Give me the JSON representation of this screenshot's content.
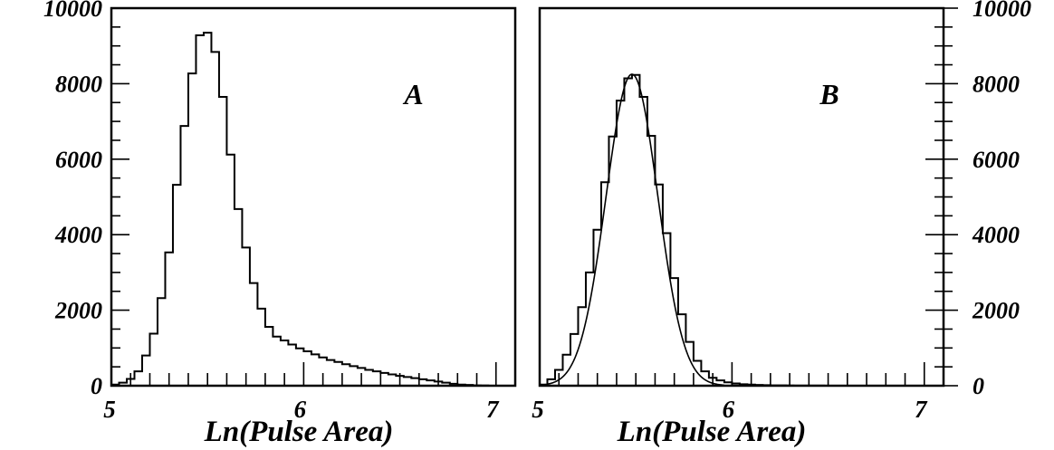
{
  "chart_data": [
    {
      "type": "step histogram",
      "panel_label": "A",
      "xlabel": "Ln(Pulse Area)",
      "ylabel": "",
      "xlim": [
        5.0,
        7.1
      ],
      "ylim": [
        0,
        10000
      ],
      "x_ticks": [
        "5",
        "6",
        "7"
      ],
      "y_ticks": [
        "0",
        "2000",
        "4000",
        "6000",
        "8000",
        "10000"
      ],
      "y_axis_side": "left",
      "bin_width": 0.04,
      "bin_start": 5.0,
      "values": [
        30,
        80,
        180,
        380,
        800,
        1380,
        2320,
        3530,
        5320,
        6880,
        8270,
        9280,
        9350,
        8840,
        7650,
        6120,
        4680,
        3660,
        2720,
        2040,
        1560,
        1300,
        1200,
        1090,
        990,
        910,
        830,
        750,
        680,
        630,
        570,
        520,
        470,
        420,
        380,
        340,
        300,
        260,
        230,
        200,
        170,
        140,
        110,
        80,
        50,
        30,
        20,
        10,
        5,
        0
      ],
      "grid": false
    },
    {
      "type": "step histogram",
      "panel_label": "B",
      "xlabel": "Ln(Pulse Area)",
      "ylabel": "",
      "xlim": [
        5.0,
        7.1
      ],
      "ylim": [
        0,
        10000
      ],
      "x_ticks": [
        "5",
        "6",
        "7"
      ],
      "y_ticks": [
        "0",
        "2000",
        "4000",
        "6000",
        "8000",
        "10000"
      ],
      "y_axis_side": "right",
      "bin_width": 0.04,
      "bin_start": 5.0,
      "values": [
        30,
        170,
        420,
        820,
        1370,
        2080,
        3000,
        4130,
        5390,
        6600,
        7550,
        8140,
        8230,
        7650,
        6620,
        5330,
        4040,
        2850,
        1890,
        1160,
        660,
        380,
        210,
        140,
        90,
        60,
        40,
        30,
        20,
        15,
        10,
        8,
        5,
        4,
        3,
        2,
        2,
        1,
        1,
        0,
        0,
        0,
        0,
        0,
        0,
        0,
        0,
        0,
        0,
        0
      ],
      "fit": {
        "type": "gaussian",
        "amplitude": 8250,
        "mean": 5.48,
        "sigma": 0.135
      },
      "grid": false
    }
  ]
}
